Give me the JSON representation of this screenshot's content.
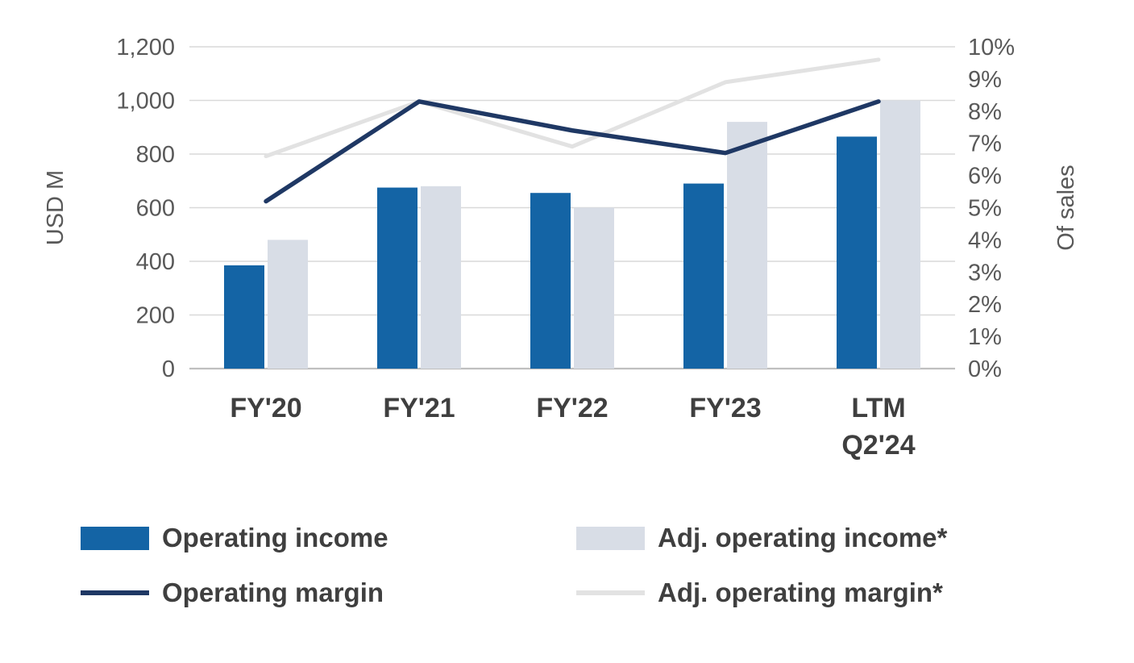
{
  "chart_data": {
    "type": "combo-bar-line",
    "title": "",
    "categories": [
      "FY'20",
      "FY'21",
      "FY'22",
      "FY'23",
      "LTM\nQ2'24"
    ],
    "axes": {
      "left": {
        "title": "USD M",
        "min": 0,
        "max": 1200,
        "step": 200,
        "tick_labels": [
          "0",
          "200",
          "400",
          "600",
          "800",
          "1,000",
          "1,200"
        ]
      },
      "right": {
        "title": "Of sales",
        "min": 0,
        "max": 10,
        "step": 1,
        "unit": "%",
        "tick_labels": [
          "0%",
          "1%",
          "2%",
          "3%",
          "4%",
          "5%",
          "6%",
          "7%",
          "8%",
          "9%",
          "10%"
        ]
      }
    },
    "bar_series": [
      {
        "name": "Operating income",
        "axis": "left",
        "color": "#1464A5",
        "values": [
          385,
          675,
          655,
          690,
          865
        ]
      },
      {
        "name": "Adj. operating income*",
        "axis": "left",
        "color": "#D8DDE6",
        "values": [
          480,
          680,
          600,
          920,
          1000
        ]
      }
    ],
    "line_series": [
      {
        "name": "Adj. operating margin*",
        "axis": "right",
        "color": "#E2E2E2",
        "width": 5,
        "values": [
          6.6,
          8.3,
          6.9,
          8.9,
          9.6
        ]
      },
      {
        "name": "Operating margin",
        "axis": "right",
        "color": "#1F3864",
        "width": 5.5,
        "values": [
          5.2,
          8.3,
          7.4,
          6.7,
          8.3
        ]
      }
    ],
    "legend": {
      "position": "bottom-left",
      "items": [
        {
          "label": "Operating income",
          "swatch": "bar",
          "color": "#1464A5"
        },
        {
          "label": "Adj. operating income*",
          "swatch": "bar",
          "color": "#D8DDE6"
        },
        {
          "label": "Operating margin",
          "swatch": "line",
          "color": "#1F3864"
        },
        {
          "label": "Adj. operating margin*",
          "swatch": "line",
          "color": "#E2E2E2"
        }
      ]
    },
    "grid": {
      "horizontal": true,
      "color": "#D9D9D9",
      "baseline_color": "#BFBFBF"
    }
  }
}
